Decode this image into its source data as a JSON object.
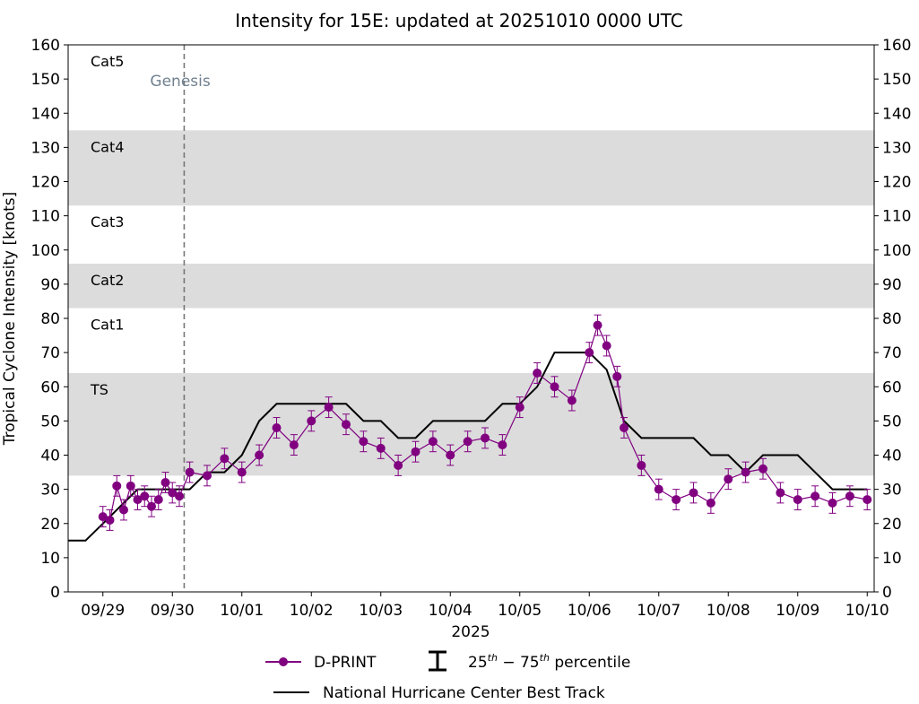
{
  "chart_data": {
    "type": "line",
    "title": "Intensity for 15E: updated at 20251010 0000 UTC",
    "ylabel": "Tropical Cyclone Intensity [knots]",
    "xlabel": "2025",
    "ylim": [
      0,
      160
    ],
    "yticks": [
      0,
      10,
      20,
      30,
      40,
      50,
      60,
      70,
      80,
      90,
      100,
      110,
      120,
      130,
      140,
      150,
      160
    ],
    "xlim_days": [
      -0.5,
      11.1
    ],
    "xticks": [
      {
        "day": 0.0,
        "label": "09/29"
      },
      {
        "day": 1.0,
        "label": "09/30"
      },
      {
        "day": 2.0,
        "label": "10/01"
      },
      {
        "day": 3.0,
        "label": "10/02"
      },
      {
        "day": 4.0,
        "label": "10/03"
      },
      {
        "day": 5.0,
        "label": "10/04"
      },
      {
        "day": 6.0,
        "label": "10/05"
      },
      {
        "day": 7.0,
        "label": "10/06"
      },
      {
        "day": 8.0,
        "label": "10/07"
      },
      {
        "day": 9.0,
        "label": "10/08"
      },
      {
        "day": 10.0,
        "label": "10/09"
      },
      {
        "day": 11.0,
        "label": "10/10"
      }
    ],
    "x_reference": "day 0 = 2025-09-29 00 UTC",
    "bands": [
      {
        "label": "TS",
        "from": 34,
        "to": 64,
        "shaded": true
      },
      {
        "label": "Cat1",
        "from": 64,
        "to": 83,
        "shaded": false
      },
      {
        "label": "Cat2",
        "from": 83,
        "to": 96,
        "shaded": true
      },
      {
        "label": "Cat3",
        "from": 96,
        "to": 113,
        "shaded": false
      },
      {
        "label": "Cat4",
        "from": 113,
        "to": 135,
        "shaded": true
      },
      {
        "label": "Cat5",
        "from": 135,
        "to": 160,
        "shaded": false
      }
    ],
    "genesis": {
      "day": 1.17,
      "label": "Genesis"
    },
    "best_track": {
      "name": "National Hurricane Center Best Track",
      "color": "#000000",
      "points": [
        [
          -0.5,
          15
        ],
        [
          -0.25,
          15
        ],
        [
          0,
          20
        ],
        [
          0.25,
          25
        ],
        [
          0.5,
          30
        ],
        [
          0.75,
          30
        ],
        [
          1,
          30
        ],
        [
          1.25,
          30
        ],
        [
          1.5,
          35
        ],
        [
          1.75,
          35
        ],
        [
          2,
          40
        ],
        [
          2.25,
          50
        ],
        [
          2.5,
          55
        ],
        [
          2.75,
          55
        ],
        [
          3,
          55
        ],
        [
          3.25,
          55
        ],
        [
          3.5,
          55
        ],
        [
          3.75,
          50
        ],
        [
          4,
          50
        ],
        [
          4.25,
          45
        ],
        [
          4.5,
          45
        ],
        [
          4.75,
          50
        ],
        [
          5,
          50
        ],
        [
          5.25,
          50
        ],
        [
          5.5,
          50
        ],
        [
          5.75,
          55
        ],
        [
          6,
          55
        ],
        [
          6.25,
          60
        ],
        [
          6.5,
          70
        ],
        [
          6.75,
          70
        ],
        [
          7,
          70
        ],
        [
          7.25,
          65
        ],
        [
          7.5,
          50
        ],
        [
          7.75,
          45
        ],
        [
          8,
          45
        ],
        [
          8.25,
          45
        ],
        [
          8.5,
          45
        ],
        [
          8.75,
          40
        ],
        [
          9,
          40
        ],
        [
          9.25,
          35
        ],
        [
          9.5,
          40
        ],
        [
          9.75,
          40
        ],
        [
          10,
          40
        ],
        [
          10.25,
          35
        ],
        [
          10.5,
          30
        ],
        [
          10.75,
          30
        ],
        [
          11,
          30
        ]
      ]
    },
    "dprint": {
      "name": "D-PRINT",
      "color": "#800080",
      "percentile_label": "25th - 75th percentile",
      "points": [
        [
          0,
          22
        ],
        [
          0.1,
          21
        ],
        [
          0.2,
          31
        ],
        [
          0.3,
          24
        ],
        [
          0.4,
          31
        ],
        [
          0.5,
          27
        ],
        [
          0.6,
          28
        ],
        [
          0.7,
          25
        ],
        [
          0.8,
          27
        ],
        [
          0.9,
          32
        ],
        [
          1.0,
          29
        ],
        [
          1.1,
          28
        ],
        [
          1.25,
          35
        ],
        [
          1.5,
          34
        ],
        [
          1.75,
          39
        ],
        [
          2.0,
          35
        ],
        [
          2.25,
          40
        ],
        [
          2.5,
          48
        ],
        [
          2.75,
          43
        ],
        [
          3.0,
          50
        ],
        [
          3.25,
          54
        ],
        [
          3.5,
          49
        ],
        [
          3.75,
          44
        ],
        [
          4.0,
          42
        ],
        [
          4.25,
          37
        ],
        [
          4.5,
          41
        ],
        [
          4.75,
          44
        ],
        [
          5.0,
          40
        ],
        [
          5.25,
          44
        ],
        [
          5.5,
          45
        ],
        [
          5.75,
          43
        ],
        [
          6.0,
          54
        ],
        [
          6.25,
          64
        ],
        [
          6.5,
          60
        ],
        [
          6.75,
          56
        ],
        [
          7.0,
          70
        ],
        [
          7.12,
          78
        ],
        [
          7.25,
          72
        ],
        [
          7.4,
          63
        ],
        [
          7.5,
          48
        ],
        [
          7.75,
          37
        ],
        [
          8.0,
          30
        ],
        [
          8.25,
          27
        ],
        [
          8.5,
          29
        ],
        [
          8.75,
          26
        ],
        [
          9.0,
          33
        ],
        [
          9.25,
          35
        ],
        [
          9.5,
          36
        ],
        [
          9.75,
          29
        ],
        [
          10.0,
          27
        ],
        [
          10.25,
          28
        ],
        [
          10.5,
          26
        ],
        [
          10.75,
          28
        ],
        [
          11.0,
          27
        ]
      ]
    }
  },
  "legend": {
    "dprint": "D-PRINT",
    "percentile_base": "25",
    "percentile_sup1": "th",
    "percentile_dash": " − 75",
    "percentile_sup2": "th",
    "percentile_tail": " percentile",
    "best_track": "National Hurricane Center Best Track"
  }
}
